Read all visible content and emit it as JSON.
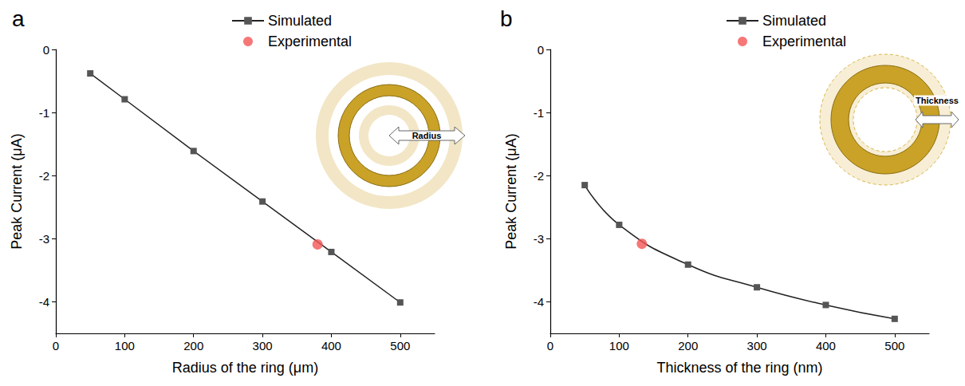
{
  "chart_data": [
    {
      "panel": "a",
      "type": "line",
      "x_label": "Radius of the ring (μm)",
      "y_label": "Peak Current (μA)",
      "annotations": [
        "Radius"
      ],
      "xlim": [
        0,
        550
      ],
      "xticks": [
        0,
        100,
        200,
        300,
        400,
        500
      ],
      "ylim": [
        -4.5,
        0
      ],
      "yticks": [
        -4,
        -3,
        -2,
        -1,
        0
      ],
      "grid": false,
      "legend": "top-right",
      "series": [
        {
          "name": "Simulated",
          "type": "line",
          "color": "#555555",
          "marker": "square",
          "line_style": "solid",
          "x": [
            50,
            100,
            200,
            300,
            400,
            500
          ],
          "values": [
            -0.38,
            -0.79,
            -1.61,
            -2.41,
            -3.21,
            -4.01
          ]
        },
        {
          "name": "Experimental",
          "type": "scatter",
          "color": "#f25555",
          "marker": "circle",
          "x": [
            380
          ],
          "values": [
            -3.09
          ]
        }
      ]
    },
    {
      "panel": "b",
      "type": "line",
      "x_label": "Thickness of the ring (nm)",
      "y_label": "Peak Current (μA)",
      "annotations": [
        "Thickness"
      ],
      "xlim": [
        0,
        550
      ],
      "xticks": [
        0,
        100,
        200,
        300,
        400,
        500
      ],
      "ylim": [
        -4.5,
        0
      ],
      "yticks": [
        -4,
        -3,
        -2,
        -1,
        0
      ],
      "grid": false,
      "legend": "top-right",
      "series": [
        {
          "name": "Simulated",
          "type": "spline",
          "color": "#555555",
          "marker": "square",
          "line_style": "solid",
          "x": [
            50,
            100,
            200,
            300,
            400,
            500
          ],
          "values": [
            -2.15,
            -2.78,
            -3.41,
            -3.77,
            -4.05,
            -4.27
          ]
        },
        {
          "name": "Experimental",
          "type": "scatter",
          "color": "#f25555",
          "marker": "circle",
          "x": [
            133
          ],
          "values": [
            -3.08
          ]
        }
      ]
    }
  ]
}
